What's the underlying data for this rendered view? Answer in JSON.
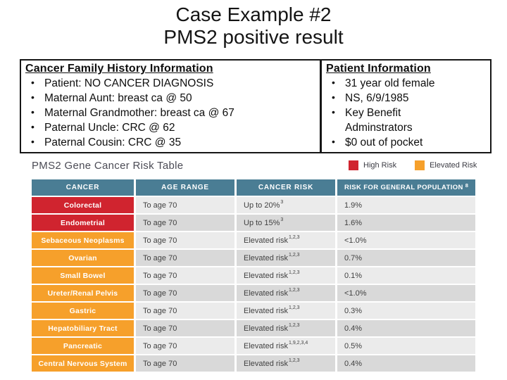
{
  "title": {
    "line1": "Case Example #2",
    "line2": "PMS2 positive result"
  },
  "family_history": {
    "heading": "Cancer Family History Information",
    "bullets": [
      "Patient: NO CANCER DIAGNOSIS",
      "Maternal Aunt: breast ca @ 50",
      "Maternal Grandmother: breast ca @ 67",
      "Paternal Uncle: CRC @ 62",
      "Paternal Cousin: CRC @ 35"
    ]
  },
  "patient_info": {
    "heading": "Patient Information",
    "bullets": [
      "31 year old female",
      "NS, 6/9/1985",
      "Key Benefit Adminstrators",
      "$0 out of pocket"
    ]
  },
  "risk_table": {
    "caption": "PMS2 Gene Cancer Risk Table",
    "legend": [
      {
        "label": "High Risk",
        "color": "#d0242f"
      },
      {
        "label": "Elevated Risk",
        "color": "#f6a02b"
      }
    ],
    "columns": [
      "CANCER",
      "AGE RANGE",
      "CANCER RISK",
      "RISK FOR GENERAL POPULATION"
    ],
    "column4_sup": "8",
    "colors": {
      "header_background": "#4a7d94",
      "high_risk": "#d0242f",
      "elevated_risk": "#f6a02b",
      "row_light": "#ebebeb",
      "row_dark": "#d9d9d9"
    },
    "rows": [
      {
        "cancer": "Colorectal",
        "risk_level": "high",
        "age_range": "To age 70",
        "cancer_risk": "Up to 20%",
        "cancer_risk_sup": "3",
        "general_population_risk": "1.9%"
      },
      {
        "cancer": "Endometrial",
        "risk_level": "high",
        "age_range": "To age 70",
        "cancer_risk": "Up to 15%",
        "cancer_risk_sup": "3",
        "general_population_risk": "1.6%"
      },
      {
        "cancer": "Sebaceous Neoplasms",
        "risk_level": "elevated",
        "age_range": "To age 70",
        "cancer_risk": "Elevated risk",
        "cancer_risk_sup": "1,2,3",
        "general_population_risk": "<1.0%"
      },
      {
        "cancer": "Ovarian",
        "risk_level": "elevated",
        "age_range": "To age 70",
        "cancer_risk": "Elevated risk",
        "cancer_risk_sup": "1,2,3",
        "general_population_risk": "0.7%"
      },
      {
        "cancer": "Small Bowel",
        "risk_level": "elevated",
        "age_range": "To age 70",
        "cancer_risk": "Elevated risk",
        "cancer_risk_sup": "1,2,3",
        "general_population_risk": "0.1%"
      },
      {
        "cancer": "Ureter/Renal Pelvis",
        "risk_level": "elevated",
        "age_range": "To age 70",
        "cancer_risk": "Elevated risk",
        "cancer_risk_sup": "1,2,3",
        "general_population_risk": "<1.0%"
      },
      {
        "cancer": "Gastric",
        "risk_level": "elevated",
        "age_range": "To age 70",
        "cancer_risk": "Elevated risk",
        "cancer_risk_sup": "1,2,3",
        "general_population_risk": "0.3%"
      },
      {
        "cancer": "Hepatobiliary Tract",
        "risk_level": "elevated",
        "age_range": "To age 70",
        "cancer_risk": "Elevated risk",
        "cancer_risk_sup": "1,2,3",
        "general_population_risk": "0.4%"
      },
      {
        "cancer": "Pancreatic",
        "risk_level": "elevated",
        "age_range": "To age 70",
        "cancer_risk": "Elevated risk",
        "cancer_risk_sup": "1,9,2,3,4",
        "general_population_risk": "0.5%"
      },
      {
        "cancer": "Central Nervous System",
        "risk_level": "elevated",
        "age_range": "To age 70",
        "cancer_risk": "Elevated risk",
        "cancer_risk_sup": "1,2,3",
        "general_population_risk": "0.4%"
      }
    ]
  }
}
